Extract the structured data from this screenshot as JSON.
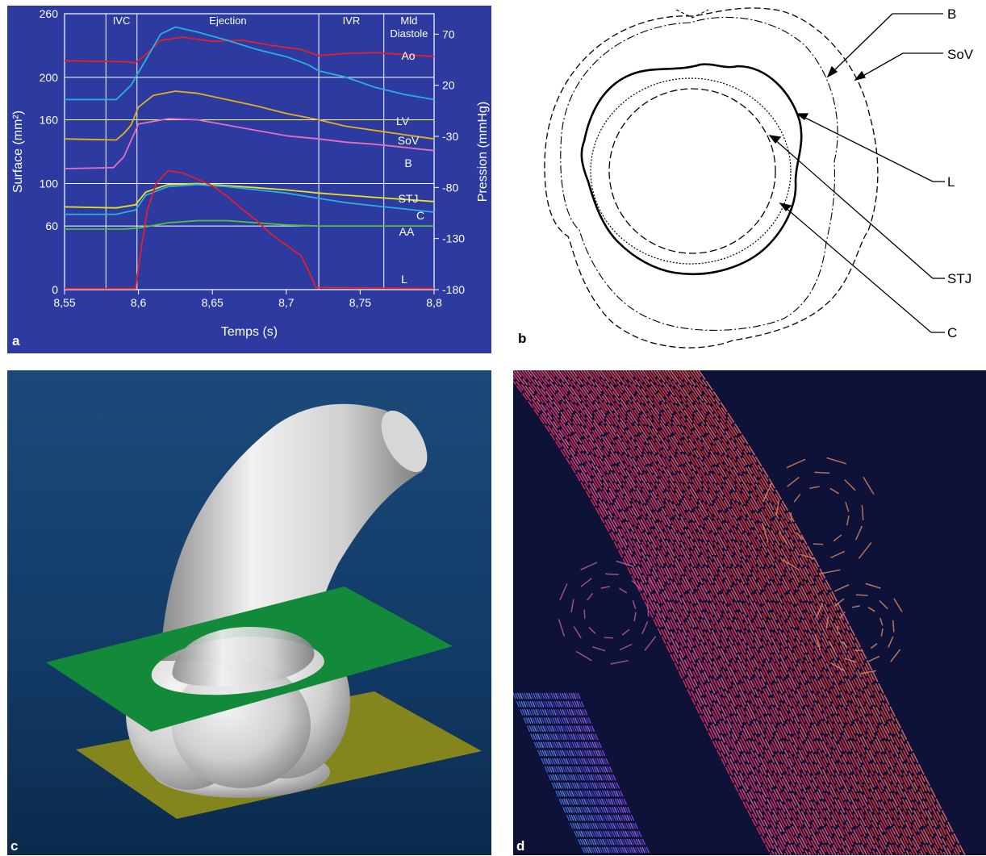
{
  "panel_labels": {
    "a": "a",
    "b": "b",
    "c": "c",
    "d": "d"
  },
  "chart_data": {
    "type": "line",
    "xlabel": "Temps (s)",
    "ylabel_left": "Surface (mm²)",
    "ylabel_right": "Pression (mmHg)",
    "xlim": [
      8.55,
      8.8
    ],
    "ylim_left": [
      0,
      260
    ],
    "ylim_right": [
      -180,
      90
    ],
    "x_ticks": [
      8.55,
      8.6,
      8.65,
      8.7,
      8.75,
      8.8
    ],
    "x_tick_labels": [
      "8,55",
      "8,6",
      "8,65",
      "8,7",
      "8,75",
      "8,8"
    ],
    "left_ticks": [
      0,
      60,
      100,
      160,
      200,
      260
    ],
    "right_ticks": [
      70,
      20,
      -30,
      -80,
      -130,
      -180
    ],
    "grid": true,
    "phases": [
      "IVC",
      "Ejection",
      "IVR",
      "Mld",
      "Diastole"
    ],
    "phase_boundaries": [
      8.578,
      8.599,
      8.722,
      8.766
    ],
    "series": [
      {
        "name": "Ao",
        "axis": "right",
        "color": "#e0202a",
        "x": [
          8.55,
          8.59,
          8.598,
          8.605,
          8.615,
          8.63,
          8.65,
          8.67,
          8.69,
          8.71,
          8.722,
          8.74,
          8.76,
          8.78,
          8.8
        ],
        "y": [
          44,
          43,
          42,
          50,
          64,
          67,
          63,
          64,
          59,
          55,
          49,
          51,
          52,
          50,
          48
        ]
      },
      {
        "name": "LV",
        "axis": "right",
        "color": "#2ab0e0",
        "x": [
          8.55,
          8.585,
          8.595,
          8.605,
          8.615,
          8.625,
          8.64,
          8.66,
          8.68,
          8.7,
          8.715,
          8.722,
          8.74,
          8.76,
          8.78,
          8.8
        ],
        "y": [
          6,
          6,
          20,
          45,
          70,
          77,
          72,
          64,
          55,
          48,
          40,
          34,
          28,
          18,
          11,
          6
        ]
      },
      {
        "name": "SoV",
        "axis": "left",
        "color": "#e0b020",
        "x": [
          8.55,
          8.585,
          8.59,
          8.595,
          8.6,
          8.61,
          8.625,
          8.64,
          8.66,
          8.68,
          8.7,
          8.722,
          8.74,
          8.76,
          8.78,
          8.8
        ],
        "y": [
          142,
          141,
          147,
          155,
          172,
          183,
          187,
          185,
          179,
          173,
          166,
          160,
          154,
          150,
          146,
          142
        ]
      },
      {
        "name": "B",
        "axis": "left",
        "color": "#e070c0",
        "x": [
          8.55,
          8.583,
          8.59,
          8.6,
          8.62,
          8.64,
          8.66,
          8.68,
          8.7,
          8.722,
          8.74,
          8.76,
          8.78,
          8.8
        ],
        "y": [
          114,
          115,
          125,
          156,
          161,
          160,
          155,
          150,
          145,
          142,
          139,
          137,
          134,
          131
        ]
      },
      {
        "name": "STJ",
        "axis": "left",
        "color": "#e8e020",
        "x": [
          8.55,
          8.585,
          8.598,
          8.605,
          8.62,
          8.64,
          8.66,
          8.68,
          8.7,
          8.722,
          8.74,
          8.76,
          8.78,
          8.8
        ],
        "y": [
          78,
          77,
          80,
          92,
          99,
          100,
          98,
          96,
          94,
          91,
          89,
          87,
          85,
          83
        ]
      },
      {
        "name": "C",
        "axis": "left",
        "color": "#2ab0e0",
        "x": [
          8.55,
          8.585,
          8.598,
          8.605,
          8.62,
          8.64,
          8.66,
          8.68,
          8.7,
          8.722,
          8.74,
          8.76,
          8.78,
          8.8
        ],
        "y": [
          71,
          71,
          75,
          89,
          97,
          99,
          97,
          94,
          91,
          86,
          82,
          79,
          76,
          73
        ]
      },
      {
        "name": "AA",
        "axis": "left",
        "color": "#50c040",
        "x": [
          8.55,
          8.59,
          8.6,
          8.62,
          8.64,
          8.66,
          8.68,
          8.7,
          8.722,
          8.8
        ],
        "y": [
          57,
          57,
          58,
          63,
          65,
          65,
          63,
          61,
          60,
          60
        ]
      },
      {
        "name": "L",
        "axis": "left",
        "color": "#e0202a",
        "x": [
          8.55,
          8.598,
          8.602,
          8.606,
          8.612,
          8.62,
          8.63,
          8.64,
          8.65,
          8.66,
          8.67,
          8.68,
          8.69,
          8.7,
          8.71,
          8.715,
          8.72,
          8.8
        ],
        "y": [
          1,
          1,
          40,
          75,
          100,
          112,
          110,
          104,
          98,
          88,
          76,
          65,
          52,
          42,
          32,
          18,
          2,
          1
        ]
      }
    ]
  },
  "diagram": {
    "labels": [
      "B",
      "SoV",
      "L",
      "STJ",
      "C"
    ]
  }
}
